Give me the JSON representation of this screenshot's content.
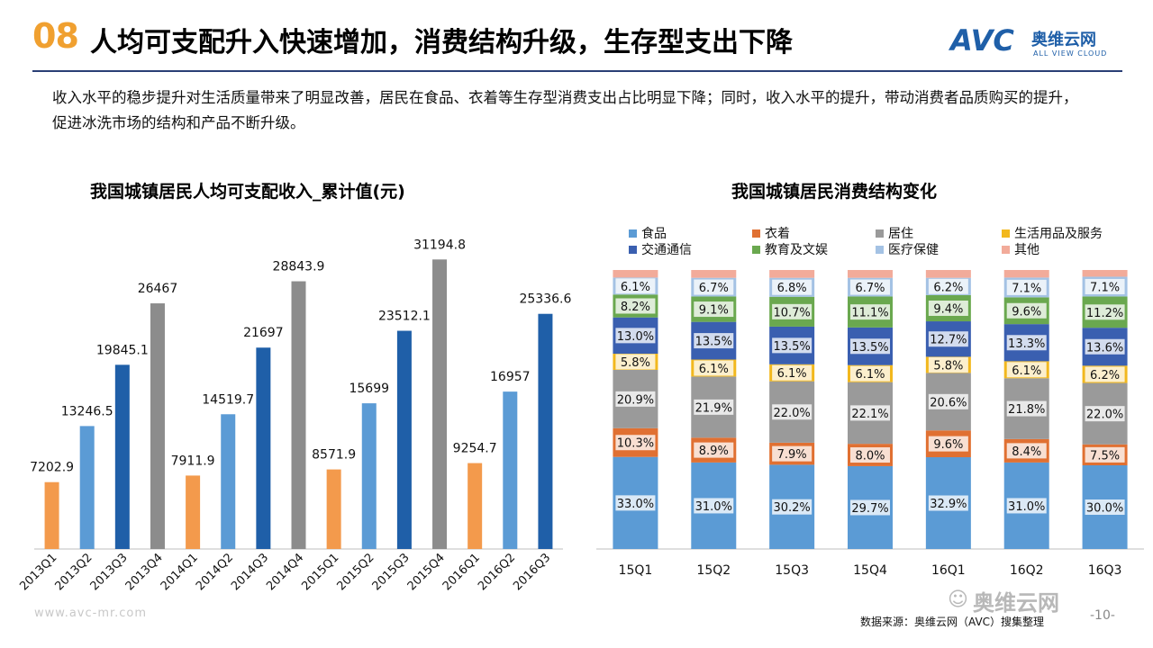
{
  "header": {
    "section_number": "08",
    "title": "人均可支配升入快速增加，消费结构升级，生存型支出下降",
    "logo_main": "AVC",
    "logo_cn": "奥维云网",
    "logo_en": "ALL VIEW CLOUD"
  },
  "intro": "收入水平的稳步提升对生活质量带来了明显改善，居民在食品、衣着等生存型消费支出占比明显下降；同时，收入水平的提升，带动消费者品质购买的提升，促进冰洗市场的结构和产品不断升级。",
  "footer": {
    "source": "数据来源：奥维云网（AVC）搜集整理",
    "page": "-10-",
    "site": "www.avc-mr.com",
    "watermark": "奥维云网"
  },
  "chart_data": [
    {
      "type": "bar",
      "title": "我国城镇居民人均可支配收入_累计值(元)",
      "categories": [
        "2013Q1",
        "2013Q2",
        "2013Q3",
        "2013Q4",
        "2014Q1",
        "2014Q2",
        "2014Q3",
        "2014Q4",
        "2015Q1",
        "2015Q2",
        "2015Q3",
        "2015Q4",
        "2016Q1",
        "2016Q2",
        "2016Q3"
      ],
      "values": [
        7202.9,
        13246.5,
        19845.1,
        26467,
        7911.9,
        14519.7,
        21697,
        28843.9,
        8571.9,
        15699,
        23512.1,
        31194.8,
        9254.7,
        16957,
        25336.6
      ],
      "labels": [
        "7202.9",
        "13246.5",
        "19845.1",
        "26467",
        "7911.9",
        "14519.7",
        "21697",
        "28843.9",
        "8571.9",
        "15699",
        "23512.1",
        "31194.8",
        "9254.7",
        "16957",
        "25336.6"
      ],
      "quarter_colors": {
        "Q1": "#f39a4c",
        "Q2": "#5b9bd5",
        "Q3": "#1f5fa8",
        "Q4": "#8c8c8c"
      },
      "ylim": [
        0,
        32000
      ],
      "grid": false
    },
    {
      "type": "bar",
      "stacked": "percent",
      "title": "我国城镇居民消费结构变化",
      "categories": [
        "15Q1",
        "15Q2",
        "15Q3",
        "15Q4",
        "16Q1",
        "16Q2",
        "16Q3"
      ],
      "legend_position": "top",
      "series": [
        {
          "name": "食品",
          "color": "#5b9bd5",
          "values": [
            33.0,
            31.0,
            30.2,
            29.7,
            32.9,
            31.0,
            30.0
          ],
          "labels": [
            "33.0%",
            "31.0%",
            "30.2%",
            "29.7%",
            "32.9%",
            "31.0%",
            "30.0%"
          ]
        },
        {
          "name": "衣着",
          "color": "#e07032",
          "values": [
            10.3,
            8.9,
            7.9,
            8.0,
            9.6,
            8.4,
            7.5
          ],
          "labels": [
            "10.3%",
            "8.9%",
            "7.9%",
            "8.0%",
            "9.6%",
            "8.4%",
            "7.5%"
          ]
        },
        {
          "name": "居住",
          "color": "#9a9a9a",
          "values": [
            20.9,
            21.9,
            22.0,
            22.1,
            20.6,
            21.8,
            22.0
          ],
          "labels": [
            "20.9%",
            "21.9%",
            "22.0%",
            "22.1%",
            "20.6%",
            "21.8%",
            "22.0%"
          ]
        },
        {
          "name": "生活用品及服务",
          "color": "#f2b81e",
          "values": [
            5.8,
            6.1,
            6.1,
            6.1,
            5.8,
            6.1,
            6.2
          ],
          "labels": [
            "5.8%",
            "6.1%",
            "6.1%",
            "6.1%",
            "5.8%",
            "6.1%",
            "6.2%"
          ]
        },
        {
          "name": "交通通信",
          "color": "#3a5fb0",
          "values": [
            13.0,
            13.5,
            13.5,
            13.5,
            12.7,
            13.3,
            13.6
          ],
          "labels": [
            "13.0%",
            "13.5%",
            "13.5%",
            "13.5%",
            "12.7%",
            "13.3%",
            "13.6%"
          ]
        },
        {
          "name": "教育及文娱",
          "color": "#6aa84f",
          "values": [
            8.2,
            9.1,
            10.7,
            11.1,
            9.4,
            9.6,
            11.2
          ],
          "labels": [
            "8.2%",
            "9.1%",
            "10.7%",
            "11.1%",
            "9.4%",
            "9.6%",
            "11.2%"
          ]
        },
        {
          "name": "医疗保健",
          "color": "#a4c2e4",
          "values": [
            6.1,
            6.7,
            6.8,
            6.7,
            6.2,
            7.1,
            7.1
          ],
          "labels": [
            "6.1%",
            "6.7%",
            "6.8%",
            "6.7%",
            "6.2%",
            "7.1%",
            "7.1%"
          ]
        },
        {
          "name": "其他",
          "color": "#f2ab9a",
          "values": [
            2.7,
            2.8,
            2.8,
            2.8,
            2.8,
            2.7,
            2.4
          ],
          "labels": [
            "",
            "",
            "",
            "",
            "",
            "",
            ""
          ]
        }
      ],
      "ylim": [
        0,
        100
      ]
    }
  ]
}
